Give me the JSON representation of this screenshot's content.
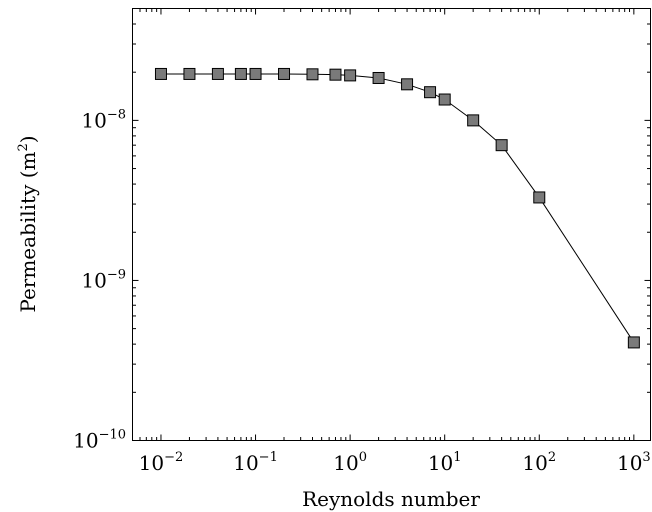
{
  "chart_data": {
    "type": "line",
    "title": "",
    "xlabel": "Reynolds number",
    "ylabel": "Permeability (m",
    "ylabel_sup": "2",
    "ylabel_close": ")",
    "xscale": "log",
    "yscale": "log",
    "xlim": [
      0.005,
      1500
    ],
    "ylim": [
      1e-10,
      5e-08
    ],
    "grid": false,
    "legend": "none",
    "x_ticks": [
      {
        "value": 0.01,
        "base": "10",
        "exp": "−2"
      },
      {
        "value": 0.1,
        "base": "10",
        "exp": "−1"
      },
      {
        "value": 1,
        "base": "10",
        "exp": "0"
      },
      {
        "value": 10,
        "base": "10",
        "exp": "1"
      },
      {
        "value": 100,
        "base": "10",
        "exp": "2"
      },
      {
        "value": 1000,
        "base": "10",
        "exp": "3"
      }
    ],
    "y_ticks": [
      {
        "value": 1e-10,
        "base": "10",
        "exp": "−10"
      },
      {
        "value": 1e-09,
        "base": "10",
        "exp": "−9"
      },
      {
        "value": 1e-08,
        "base": "10",
        "exp": "−8"
      }
    ],
    "series": [
      {
        "marker": "square",
        "marker_color": "#7a7a7a",
        "line_color": "#000000",
        "x": [
          0.01,
          0.02,
          0.04,
          0.07,
          0.1,
          0.2,
          0.4,
          0.7,
          1,
          2,
          4,
          7,
          10,
          20,
          40,
          100,
          1000
        ],
        "y": [
          1.95e-08,
          1.95e-08,
          1.95e-08,
          1.95e-08,
          1.95e-08,
          1.95e-08,
          1.94e-08,
          1.93e-08,
          1.91e-08,
          1.84e-08,
          1.68e-08,
          1.5e-08,
          1.35e-08,
          1e-08,
          7e-09,
          3.3e-09,
          4.1e-10
        ]
      }
    ]
  }
}
